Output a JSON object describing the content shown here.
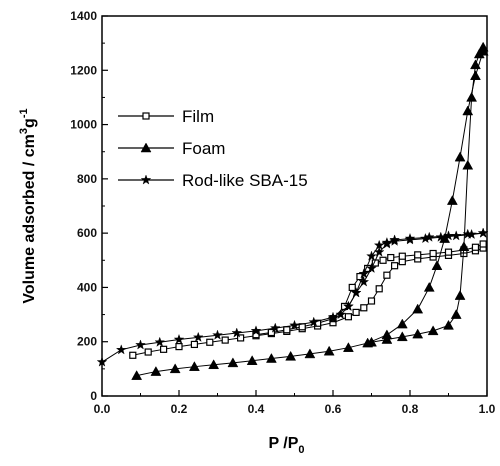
{
  "chart_data": {
    "type": "line",
    "title": "",
    "xlabel": "P /P",
    "xlabel_sub": "0",
    "ylabel": "Volume adsorbed / cm",
    "ylabel_sup1": "3",
    "ylabel_mid": "g",
    "ylabel_sup2": "-1",
    "xlim": [
      0.0,
      1.0
    ],
    "ylim": [
      0,
      1400
    ],
    "xticks": [
      "0.0",
      "0.2",
      "0.4",
      "0.6",
      "0.8",
      "1.0"
    ],
    "yticks": [
      "0",
      "200",
      "400",
      "600",
      "800",
      "1000",
      "1200",
      "1400"
    ],
    "xtick_values": [
      0.0,
      0.2,
      0.4,
      0.6,
      0.8,
      1.0
    ],
    "ytick_values": [
      0,
      200,
      400,
      600,
      800,
      1000,
      1200,
      1400
    ],
    "legend_position": "upper-left",
    "series": [
      {
        "name": "Film",
        "marker": "open-square",
        "adsorption": {
          "x": [
            0.08,
            0.12,
            0.16,
            0.2,
            0.24,
            0.28,
            0.32,
            0.36,
            0.4,
            0.44,
            0.48,
            0.52,
            0.56,
            0.6,
            0.64,
            0.66,
            0.68,
            0.7,
            0.72,
            0.74,
            0.76,
            0.78,
            0.82,
            0.86,
            0.9,
            0.94,
            0.97,
            0.99
          ],
          "y": [
            150,
            162,
            172,
            182,
            190,
            198,
            206,
            214,
            222,
            230,
            238,
            248,
            258,
            270,
            292,
            308,
            325,
            350,
            395,
            445,
            480,
            495,
            505,
            512,
            518,
            525,
            535,
            545
          ]
        },
        "desorption": {
          "x": [
            0.99,
            0.97,
            0.94,
            0.9,
            0.86,
            0.82,
            0.78,
            0.75,
            0.73,
            0.71,
            0.69,
            0.67,
            0.65,
            0.63,
            0.6,
            0.56,
            0.52,
            0.48,
            0.44,
            0.4
          ],
          "y": [
            560,
            548,
            538,
            530,
            525,
            520,
            515,
            510,
            500,
            490,
            470,
            440,
            400,
            330,
            285,
            268,
            255,
            244,
            234,
            226
          ]
        }
      },
      {
        "name": "Foam",
        "marker": "filled-triangle",
        "adsorption": {
          "x": [
            0.09,
            0.14,
            0.19,
            0.24,
            0.29,
            0.34,
            0.39,
            0.44,
            0.49,
            0.54,
            0.59,
            0.64,
            0.69,
            0.74,
            0.78,
            0.82,
            0.85,
            0.87,
            0.89,
            0.91,
            0.93,
            0.95,
            0.97,
            0.99
          ],
          "y": [
            75,
            90,
            100,
            108,
            115,
            122,
            130,
            138,
            146,
            155,
            165,
            178,
            195,
            225,
            265,
            320,
            400,
            480,
            580,
            720,
            880,
            1050,
            1180,
            1270
          ]
        },
        "desorption": {
          "x": [
            0.99,
            0.98,
            0.97,
            0.96,
            0.95,
            0.94,
            0.93,
            0.92,
            0.9,
            0.86,
            0.82,
            0.78,
            0.74,
            0.7
          ],
          "y": [
            1285,
            1260,
            1220,
            1100,
            850,
            550,
            370,
            300,
            260,
            240,
            228,
            218,
            208,
            198
          ]
        }
      },
      {
        "name": "Rod-like SBA-15",
        "marker": "star",
        "adsorption": {
          "x": [
            0.0,
            0.05,
            0.1,
            0.15,
            0.2,
            0.25,
            0.3,
            0.35,
            0.4,
            0.45,
            0.5,
            0.55,
            0.6,
            0.64,
            0.66,
            0.68,
            0.7,
            0.72,
            0.74,
            0.76,
            0.8,
            0.84,
            0.88,
            0.92,
            0.96,
            0.99
          ],
          "y": [
            125,
            170,
            188,
            198,
            208,
            216,
            224,
            232,
            240,
            250,
            260,
            272,
            290,
            330,
            380,
            450,
            515,
            555,
            565,
            570,
            575,
            580,
            585,
            590,
            595,
            600
          ]
        },
        "desorption": {
          "x": [
            0.99,
            0.95,
            0.9,
            0.85,
            0.8,
            0.76,
            0.74,
            0.72,
            0.7,
            0.68,
            0.66,
            0.64,
            0.62,
            0.6
          ],
          "y": [
            600,
            596,
            590,
            585,
            580,
            575,
            560,
            530,
            470,
            420,
            380,
            330,
            300,
            285
          ]
        }
      }
    ]
  },
  "style": {
    "line_color": "#000000",
    "marker_color": "#000000"
  }
}
